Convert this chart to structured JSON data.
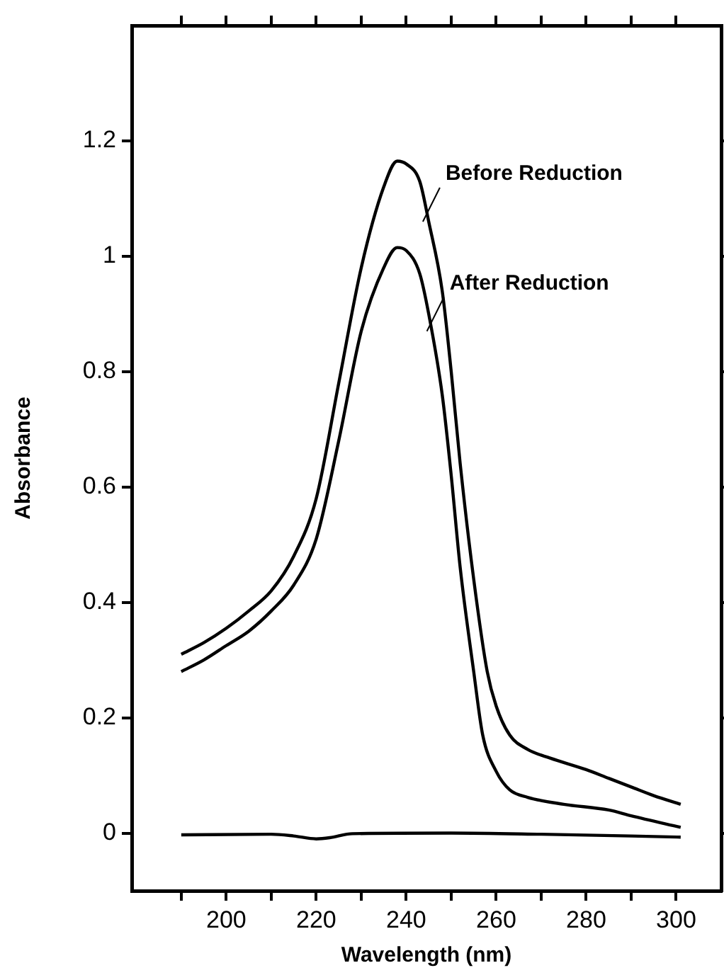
{
  "chart_data": {
    "type": "line",
    "xlabel": "Wavelength (nm)",
    "ylabel": "Absorbance",
    "xlim": [
      179,
      310
    ],
    "xticks": [
      {
        "value": 190,
        "label": null
      },
      200,
      {
        "value": 210,
        "label": null
      },
      220,
      {
        "value": 230,
        "label": null
      },
      240,
      {
        "value": 250,
        "label": null
      },
      260,
      {
        "value": 270,
        "label": null
      },
      280,
      {
        "value": 290,
        "label": null
      },
      300
    ],
    "ylim": [
      -0.1,
      1.4
    ],
    "yticks": [
      0,
      0.2,
      0.4,
      0.6,
      0.8,
      1.0,
      1.2
    ],
    "grid": false,
    "legend": false,
    "marker": "none",
    "line_style": "solid",
    "series": [
      {
        "color": "#000000",
        "x": [
          190,
          195,
          200,
          205,
          210,
          215,
          220,
          225,
          230,
          235,
          238,
          240,
          243,
          245,
          248,
          250,
          252,
          255,
          258,
          260,
          263,
          267,
          272,
          280,
          285,
          290,
          295,
          301
        ],
        "values": [
          0.31,
          0.33,
          0.355,
          0.385,
          0.42,
          0.48,
          0.58,
          0.78,
          0.98,
          1.12,
          1.165,
          1.16,
          1.13,
          1.06,
          0.94,
          0.8,
          0.64,
          0.44,
          0.28,
          0.22,
          0.17,
          0.145,
          0.13,
          0.11,
          0.095,
          0.08,
          0.065,
          0.05
        ]
      },
      {
        "color": "#000000",
        "x": [
          190,
          195,
          200,
          205,
          210,
          215,
          220,
          225,
          230,
          235,
          238,
          240,
          243,
          245,
          248,
          250,
          252,
          255,
          257,
          260,
          263,
          267,
          275,
          285,
          290,
          301
        ],
        "values": [
          0.28,
          0.3,
          0.325,
          0.35,
          0.385,
          0.43,
          0.51,
          0.68,
          0.87,
          0.98,
          1.015,
          1.01,
          0.97,
          0.9,
          0.76,
          0.62,
          0.46,
          0.28,
          0.17,
          0.107,
          0.075,
          0.062,
          0.05,
          0.04,
          0.03,
          0.01
        ]
      },
      {
        "color": "#000000",
        "x": [
          190,
          210,
          215,
          220,
          223,
          228,
          250,
          270,
          290,
          301
        ],
        "values": [
          -0.003,
          -0.002,
          -0.005,
          -0.01,
          -0.008,
          -0.001,
          0,
          -0.002,
          -0.005,
          -0.007
        ]
      }
    ],
    "annotations": [
      {
        "text": "Before Reduction",
        "x": 243.7,
        "y": 1.06
      },
      {
        "text": "After Reduction",
        "x": 244.6,
        "y": 0.87
      }
    ]
  }
}
